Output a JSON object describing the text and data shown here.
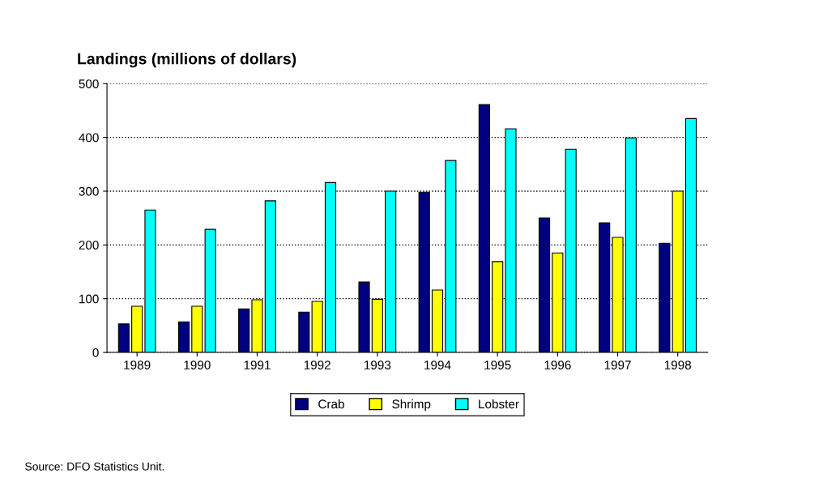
{
  "chart_data": {
    "type": "bar",
    "title": "Landings (millions of dollars)",
    "categories": [
      "1989",
      "1990",
      "1991",
      "1992",
      "1993",
      "1994",
      "1995",
      "1996",
      "1997",
      "1998"
    ],
    "series": [
      {
        "name": "Crab",
        "color": "#000080",
        "values": [
          53,
          57,
          81,
          75,
          131,
          298,
          461,
          250,
          241,
          203
        ]
      },
      {
        "name": "Shrimp",
        "color": "#ffff00",
        "values": [
          86,
          86,
          98,
          95,
          99,
          116,
          169,
          185,
          214,
          300
        ]
      },
      {
        "name": "Lobster",
        "color": "#00ffff",
        "values": [
          265,
          229,
          282,
          316,
          300,
          357,
          416,
          378,
          399,
          435
        ]
      }
    ],
    "ylim": [
      0,
      500
    ],
    "yticks": [
      0,
      100,
      200,
      300,
      400,
      500
    ],
    "grid": "y",
    "legend": "bottom",
    "annotations": [
      "Source: DFO Statistics Unit."
    ]
  }
}
